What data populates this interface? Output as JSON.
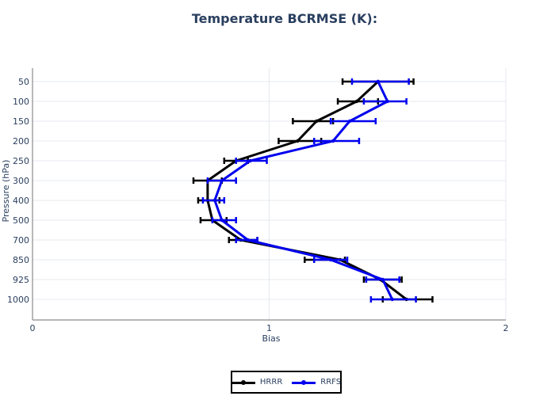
{
  "chart_data": {
    "type": "line",
    "title": "Temperature BCRMSE (K):",
    "xlabel": "Bias",
    "ylabel": "Pressure (hPa)",
    "xlim": [
      0,
      2
    ],
    "x_ticks": [
      "0",
      "1",
      "2"
    ],
    "categories": [
      "50",
      "100",
      "150",
      "200",
      "250",
      "300",
      "400",
      "500",
      "700",
      "850",
      "925",
      "1000"
    ],
    "series": [
      {
        "name": "HRRR",
        "color": "#000000",
        "values": [
          1.46,
          1.37,
          1.2,
          1.12,
          0.86,
          0.74,
          0.74,
          0.76,
          0.88,
          1.3,
          1.47,
          1.58
        ],
        "err_low": [
          1.31,
          1.29,
          1.1,
          1.04,
          0.81,
          0.68,
          0.7,
          0.71,
          0.83,
          1.15,
          1.4,
          1.48
        ],
        "err_high": [
          1.61,
          1.46,
          1.27,
          1.22,
          0.91,
          0.8,
          0.79,
          0.82,
          0.95,
          1.32,
          1.56,
          1.69
        ]
      },
      {
        "name": "RRFS",
        "color": "#0000ee",
        "values": [
          1.46,
          1.5,
          1.34,
          1.27,
          0.92,
          0.8,
          0.77,
          0.8,
          0.91,
          1.26,
          1.48,
          1.52
        ],
        "err_low": [
          1.35,
          1.4,
          1.26,
          1.19,
          0.86,
          0.74,
          0.72,
          0.76,
          0.86,
          1.19,
          1.41,
          1.43
        ],
        "err_high": [
          1.59,
          1.58,
          1.45,
          1.38,
          0.99,
          0.86,
          0.81,
          0.86,
          0.95,
          1.33,
          1.55,
          1.62
        ]
      }
    ],
    "legend_position": "bottom-center",
    "grid": true
  }
}
